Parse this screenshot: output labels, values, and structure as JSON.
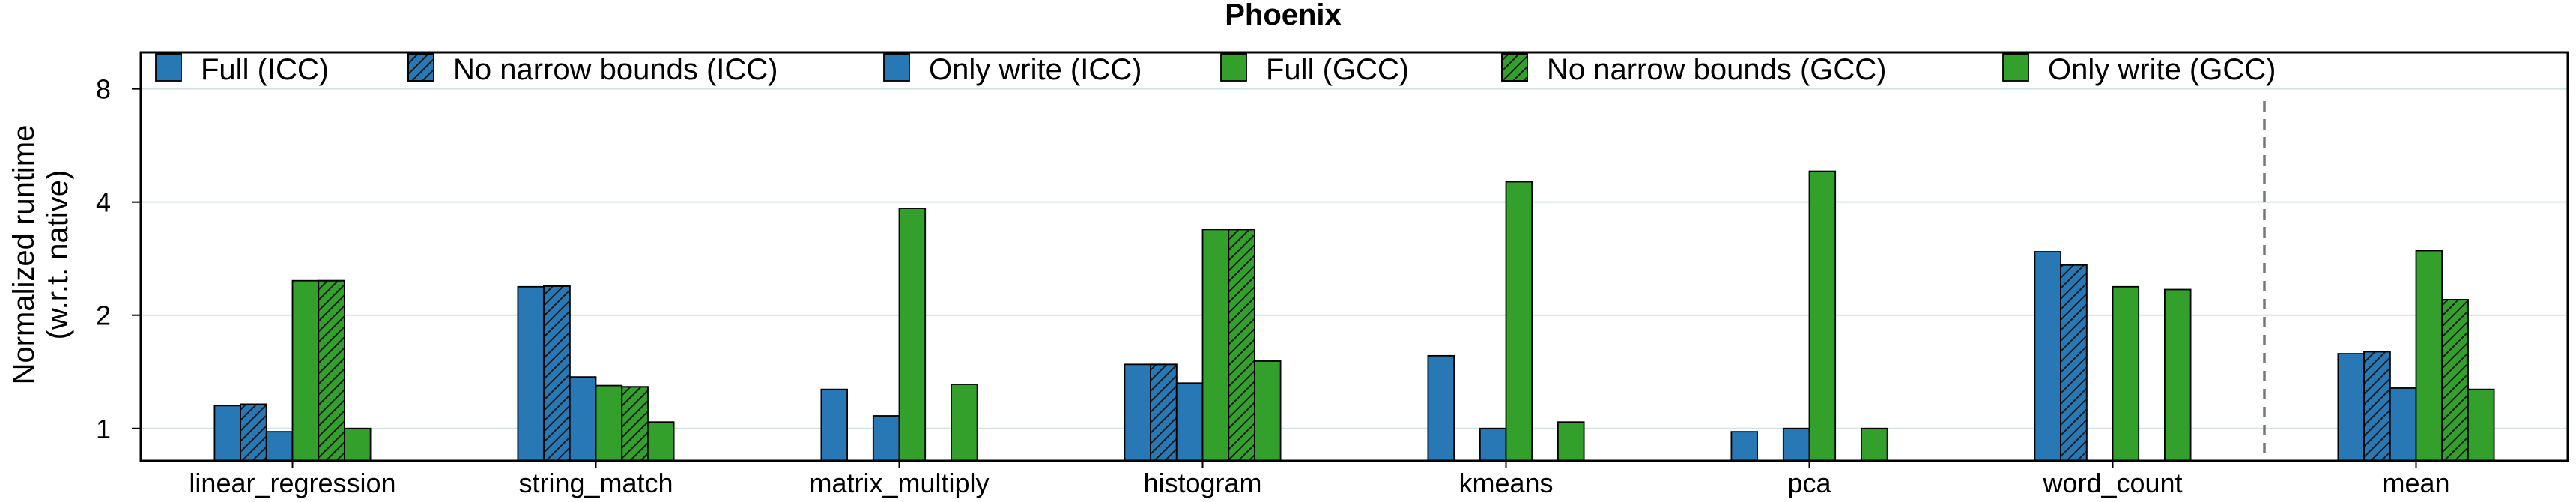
{
  "chart_data": {
    "type": "bar",
    "title": "Phoenix",
    "ylabel": [
      "Normalized runtime",
      "(w.r.t. native)"
    ],
    "y_scale": "log2",
    "ylim": [
      0.82,
      10.0
    ],
    "yticks": [
      1,
      2,
      4,
      8
    ],
    "ytick_labels": [
      "1",
      "2",
      "4",
      "8"
    ],
    "grid": "horizontal",
    "legend_placement": "top",
    "separator_before_last_category": true,
    "categories": [
      "linear_regression",
      "string_match",
      "matrix_multiply",
      "histogram",
      "kmeans",
      "pca",
      "word_count",
      "mean"
    ],
    "series": [
      {
        "name": "Full (ICC)",
        "color": "#2878b5",
        "hatch": false,
        "values": [
          1.15,
          2.38,
          1.27,
          1.48,
          1.56,
          0.98,
          2.95,
          1.58
        ]
      },
      {
        "name": "No narrow bounds (ICC)",
        "color": "#2878b5",
        "hatch": true,
        "values": [
          1.16,
          2.39,
          null,
          1.48,
          null,
          null,
          2.72,
          1.6
        ]
      },
      {
        "name": "Only write (ICC)",
        "color": "#2878b5",
        "hatch": false,
        "values": [
          0.98,
          1.37,
          1.08,
          1.32,
          1.0,
          1.0,
          null,
          1.28
        ]
      },
      {
        "name": "Full (GCC)",
        "color": "#33a02c",
        "hatch": false,
        "values": [
          2.47,
          1.3,
          3.85,
          3.38,
          4.53,
          4.83,
          2.38,
          2.97
        ]
      },
      {
        "name": "No narrow bounds (GCC)",
        "color": "#33a02c",
        "hatch": true,
        "values": [
          2.47,
          1.29,
          null,
          3.38,
          null,
          null,
          null,
          2.2
        ]
      },
      {
        "name": "Only write (GCC)",
        "color": "#33a02c",
        "hatch": false,
        "values": [
          1.0,
          1.04,
          1.31,
          1.51,
          1.04,
          1.0,
          2.34,
          1.27
        ]
      }
    ]
  }
}
